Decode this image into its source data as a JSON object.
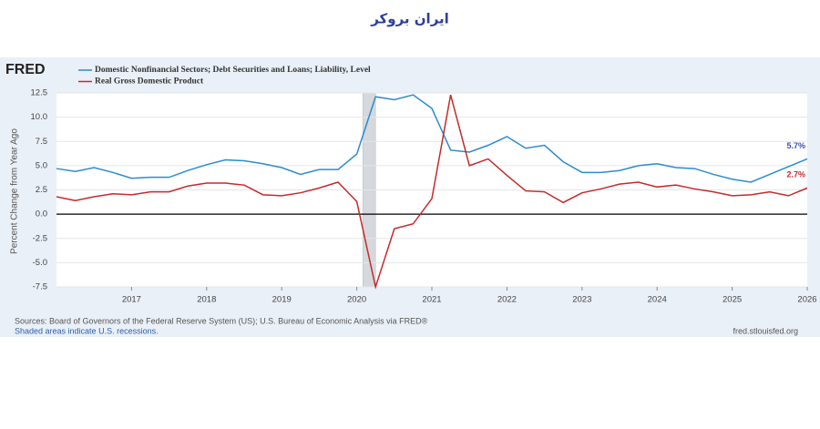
{
  "header": {
    "logo": "ایران بروکر"
  },
  "brand": "FRED",
  "chart_data": {
    "type": "line",
    "ylabel": "Percent Change from Year Ago",
    "x": [
      2016,
      2016.25,
      2016.5,
      2016.75,
      2017,
      2017.25,
      2017.5,
      2017.75,
      2018,
      2018.25,
      2018.5,
      2018.75,
      2019,
      2019.25,
      2019.5,
      2019.75,
      2020,
      2020.25,
      2020.5,
      2020.75,
      2021,
      2021.25,
      2021.5,
      2021.75,
      2022,
      2022.25,
      2022.5,
      2022.75,
      2023,
      2023.25,
      2023.5,
      2023.75,
      2024,
      2024.25,
      2024.5,
      2024.75,
      2025,
      2025.25,
      2025.5,
      2025.75,
      2026
    ],
    "series": [
      {
        "name": "Domestic Nonfinancial Sectors; Debt Securities and Loans; Liability, Level",
        "color": "#2b8ccf",
        "values": [
          4.7,
          4.4,
          4.8,
          4.3,
          3.7,
          3.8,
          3.8,
          4.5,
          5.1,
          5.6,
          5.5,
          5.2,
          4.8,
          4.1,
          4.6,
          4.6,
          6.2,
          12.1,
          11.8,
          12.3,
          10.9,
          6.6,
          6.4,
          7.1,
          8.0,
          6.8,
          7.1,
          5.4,
          4.3,
          4.3,
          4.5,
          5.0,
          5.2,
          4.8,
          4.7,
          4.1,
          3.6,
          3.3,
          4.1,
          4.9,
          5.7
        ],
        "last_label": "5.7%",
        "label_color": "#3d4fb0"
      },
      {
        "name": "Real Gross Domestic Product",
        "color": "#c62a2a",
        "values": [
          1.8,
          1.4,
          1.8,
          2.1,
          2.0,
          2.3,
          2.3,
          2.9,
          3.2,
          3.2,
          3.0,
          2.0,
          1.9,
          2.2,
          2.7,
          3.3,
          1.3,
          -7.5,
          -1.5,
          -1.0,
          1.6,
          12.3,
          5.0,
          5.7,
          4.0,
          2.4,
          2.3,
          1.2,
          2.2,
          2.6,
          3.1,
          3.3,
          2.8,
          3.0,
          2.6,
          2.3,
          1.9,
          2.0,
          2.3,
          1.9,
          2.7
        ],
        "last_label": "2.7%",
        "label_color": "#c62a2a"
      }
    ],
    "xlim": [
      2016,
      2026
    ],
    "xticks": [
      2017,
      2018,
      2019,
      2020,
      2021,
      2022,
      2023,
      2024,
      2025,
      2026
    ],
    "ylim": [
      -7.5,
      12.5
    ],
    "yticks": [
      12.5,
      {
        "value": 10,
        "label": "10.0"
      },
      7.5,
      {
        "value": 5,
        "label": "5.0"
      },
      2.5,
      {
        "value": 0,
        "label": "0.0"
      },
      -2.5,
      {
        "value": -5,
        "label": "-5.0"
      },
      -7.5
    ],
    "grid": true,
    "recessions": [
      [
        2020.08,
        2020.25
      ]
    ]
  },
  "footer": {
    "sources": "Sources: Board of Governors of the Federal Reserve System (US); U.S. Bureau of Economic Analysis via FRED®",
    "note": "Shaded areas indicate U.S. recessions.",
    "site": "fred.stlouisfed.org"
  }
}
